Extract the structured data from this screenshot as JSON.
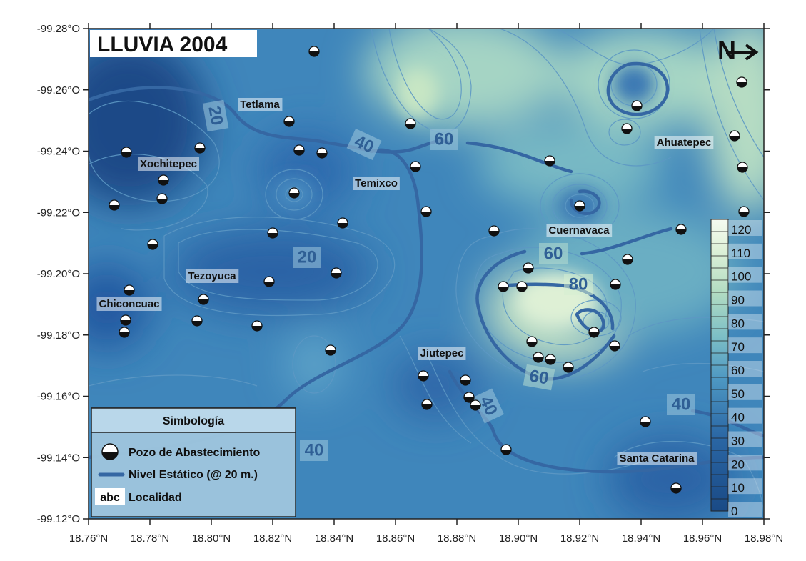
{
  "title": "LLUVIA 2004",
  "axes": {
    "x_ticks": [
      "18.76°N",
      "18.78°N",
      "18.80°N",
      "18.82°N",
      "18.84°N",
      "18.86°N",
      "18.88°N",
      "18.90°N",
      "18.92°N",
      "18.94°N",
      "18.96°N",
      "18.98°N"
    ],
    "y_ticks": [
      "-99.28°O",
      "-99.26°O",
      "-99.24°O",
      "-99.22°O",
      "-99.20°O",
      "-99.18°O",
      "-99.16°O",
      "-99.14°O",
      "-99.12°O"
    ]
  },
  "localities": [
    {
      "name": "Tetlama"
    },
    {
      "name": "Xochitepec"
    },
    {
      "name": "Temixco"
    },
    {
      "name": "Tezoyuca"
    },
    {
      "name": "Chiconcuac"
    },
    {
      "name": "Cuernavaca"
    },
    {
      "name": "Ahuatepec"
    },
    {
      "name": "Jiutepec"
    },
    {
      "name": "Santa Catarina"
    }
  ],
  "contour_labels": [
    "20",
    "20",
    "40",
    "60",
    "60",
    "80",
    "60",
    "40",
    "40",
    "40"
  ],
  "colorbar": {
    "labels": [
      "120",
      "110",
      "100",
      "90",
      "80",
      "70",
      "60",
      "50",
      "40",
      "30",
      "20",
      "10",
      "0"
    ]
  },
  "legend": {
    "title": "Simbología",
    "items": [
      {
        "label": "Pozo de Abastecimiento",
        "symbol": "well"
      },
      {
        "label": "Nivel Estático (@ 20 m.)",
        "symbol": "line"
      },
      {
        "label": "Localidad",
        "symbol": "abc",
        "symbol_text": "abc"
      }
    ]
  },
  "north_arrow": {
    "glyph": "N"
  },
  "colors": {
    "deep": "#1d4f8c",
    "mid": "#3d84ba",
    "light": "#cfe8c9",
    "contour": "#3567a3"
  }
}
